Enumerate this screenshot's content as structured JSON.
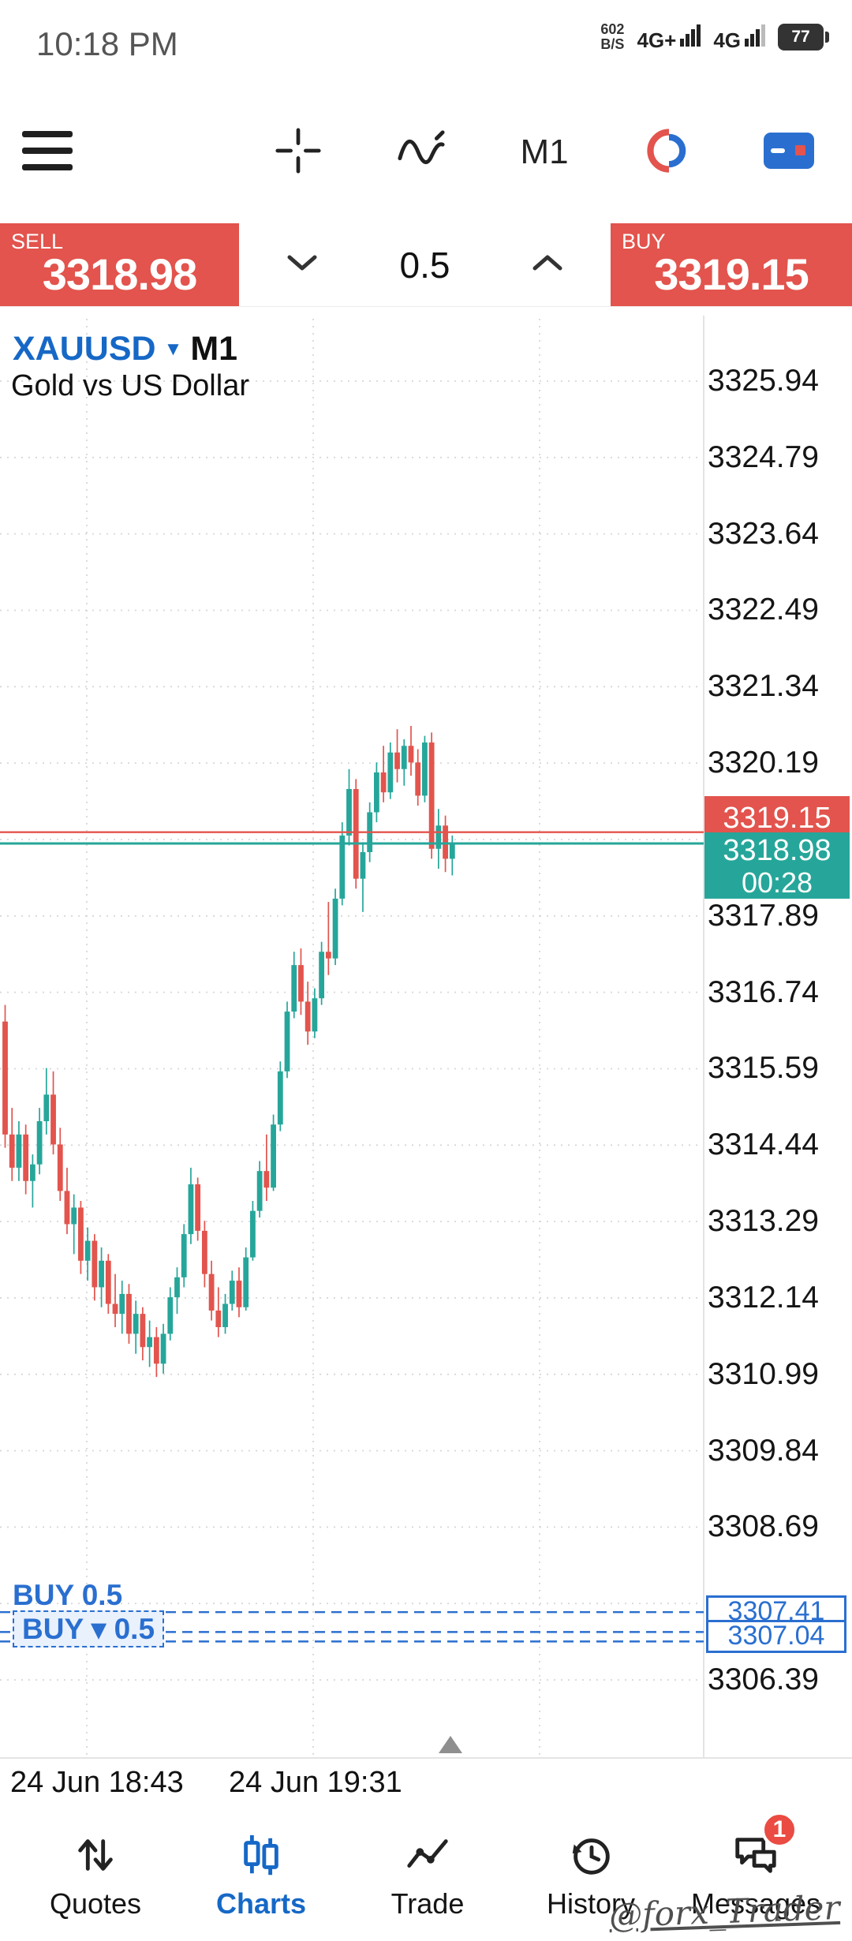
{
  "status_bar": {
    "time": "10:18 PM",
    "data_rate_top": "602",
    "data_rate_bottom": "B/S",
    "network_1": "4G+",
    "network_2": "4G",
    "battery_percent": "77"
  },
  "toolbar": {
    "timeframe_label": "M1"
  },
  "order_panel": {
    "sell_label": "SELL",
    "sell_price": "3318.98",
    "volume": "0.5",
    "buy_label": "BUY",
    "buy_price": "3319.15"
  },
  "chart": {
    "symbol": "XAUUSD",
    "timeframe": "M1",
    "description": "Gold vs US Dollar",
    "ask_price": "3319.15",
    "bid_price": "3318.98",
    "countdown": "00:28",
    "order_prices": {
      "first": "3307.41",
      "second": "3307.04"
    },
    "order_labels": {
      "first": "BUY 0.5",
      "second": "BUY ▾ 0.5"
    },
    "time_labels": {
      "first": "24 Jun 18:43",
      "second": "24 Jun 19:31"
    }
  },
  "chart_data": {
    "type": "candlestick",
    "symbol": "XAUUSD",
    "timeframe": "M1",
    "description": "Gold vs US Dollar",
    "bid": 3318.98,
    "ask": 3319.15,
    "countdown": "00:28",
    "y_axis_ticks": [
      3325.94,
      3324.79,
      3323.64,
      3322.49,
      3321.34,
      3320.19,
      3317.89,
      3316.74,
      3315.59,
      3314.44,
      3313.29,
      3312.14,
      3310.99,
      3309.84,
      3308.69,
      3306.39
    ],
    "x_axis_labels": [
      "24 Jun 18:43",
      "24 Jun 19:31"
    ],
    "orders": [
      {
        "label": "BUY 0.5",
        "price": 3307.41
      },
      {
        "label": "BUY 0.5",
        "price": 3307.04
      }
    ],
    "up_color": "#26a69a",
    "down_color": "#e2544d",
    "order_color": "#2a6fd0",
    "candles": [
      [
        3316.3,
        3316.55,
        3314.4,
        3314.6
      ],
      [
        3314.6,
        3315.0,
        3313.9,
        3314.1
      ],
      [
        3314.1,
        3314.8,
        3313.9,
        3314.6
      ],
      [
        3314.6,
        3314.75,
        3313.7,
        3313.9
      ],
      [
        3313.9,
        3314.3,
        3313.5,
        3314.15
      ],
      [
        3314.15,
        3315.0,
        3314.0,
        3314.8
      ],
      [
        3314.8,
        3315.6,
        3314.6,
        3315.2
      ],
      [
        3315.2,
        3315.55,
        3314.3,
        3314.45
      ],
      [
        3314.45,
        3314.7,
        3313.6,
        3313.75
      ],
      [
        3313.75,
        3314.1,
        3313.1,
        3313.25
      ],
      [
        3313.25,
        3313.7,
        3312.8,
        3313.5
      ],
      [
        3313.5,
        3313.6,
        3312.5,
        3312.7
      ],
      [
        3312.7,
        3313.2,
        3312.4,
        3313.0
      ],
      [
        3313.0,
        3313.1,
        3312.1,
        3312.3
      ],
      [
        3312.3,
        3312.9,
        3312.0,
        3312.7
      ],
      [
        3312.7,
        3312.8,
        3311.9,
        3312.05
      ],
      [
        3312.05,
        3312.5,
        3311.7,
        3311.9
      ],
      [
        3311.9,
        3312.4,
        3311.6,
        3312.2
      ],
      [
        3312.2,
        3312.35,
        3311.45,
        3311.6
      ],
      [
        3311.6,
        3312.1,
        3311.3,
        3311.9
      ],
      [
        3311.9,
        3312.0,
        3311.2,
        3311.4
      ],
      [
        3311.4,
        3311.8,
        3311.1,
        3311.55
      ],
      [
        3311.55,
        3311.7,
        3310.95,
        3311.15
      ],
      [
        3311.15,
        3311.75,
        3311.0,
        3311.6
      ],
      [
        3311.6,
        3312.3,
        3311.5,
        3312.15
      ],
      [
        3312.15,
        3312.6,
        3311.9,
        3312.45
      ],
      [
        3312.45,
        3313.25,
        3312.3,
        3313.1
      ],
      [
        3313.1,
        3314.1,
        3312.95,
        3313.85
      ],
      [
        3313.85,
        3313.95,
        3313.0,
        3313.15
      ],
      [
        3313.15,
        3313.3,
        3312.3,
        3312.5
      ],
      [
        3312.5,
        3312.7,
        3311.8,
        3311.95
      ],
      [
        3311.95,
        3312.3,
        3311.55,
        3311.7
      ],
      [
        3311.7,
        3312.2,
        3311.6,
        3312.05
      ],
      [
        3312.05,
        3312.55,
        3311.95,
        3312.4
      ],
      [
        3312.4,
        3312.6,
        3311.85,
        3312.0
      ],
      [
        3312.0,
        3312.9,
        3311.95,
        3312.75
      ],
      [
        3312.75,
        3313.6,
        3312.7,
        3313.45
      ],
      [
        3313.45,
        3314.2,
        3313.35,
        3314.05
      ],
      [
        3314.05,
        3314.6,
        3313.6,
        3313.8
      ],
      [
        3313.8,
        3314.9,
        3313.75,
        3314.75
      ],
      [
        3314.75,
        3315.7,
        3314.65,
        3315.55
      ],
      [
        3315.55,
        3316.6,
        3315.45,
        3316.45
      ],
      [
        3316.45,
        3317.35,
        3316.35,
        3317.15
      ],
      [
        3317.15,
        3317.4,
        3316.4,
        3316.6
      ],
      [
        3316.6,
        3316.9,
        3315.95,
        3316.15
      ],
      [
        3316.15,
        3316.8,
        3316.05,
        3316.65
      ],
      [
        3316.65,
        3317.5,
        3316.55,
        3317.35
      ],
      [
        3317.35,
        3318.1,
        3317.0,
        3317.25
      ],
      [
        3317.25,
        3318.3,
        3317.15,
        3318.15
      ],
      [
        3318.15,
        3319.3,
        3318.05,
        3319.1
      ],
      [
        3319.1,
        3320.1,
        3318.95,
        3319.8
      ],
      [
        3319.8,
        3319.95,
        3318.3,
        3318.45
      ],
      [
        3318.45,
        3319.0,
        3317.95,
        3318.85
      ],
      [
        3318.85,
        3319.6,
        3318.7,
        3319.45
      ],
      [
        3319.45,
        3320.2,
        3319.3,
        3320.05
      ],
      [
        3320.05,
        3320.45,
        3319.6,
        3319.75
      ],
      [
        3319.75,
        3320.5,
        3319.65,
        3320.35
      ],
      [
        3320.35,
        3320.7,
        3319.9,
        3320.1
      ],
      [
        3320.1,
        3320.55,
        3319.85,
        3320.45
      ],
      [
        3320.45,
        3320.75,
        3320.0,
        3320.2
      ],
      [
        3320.2,
        3320.4,
        3319.55,
        3319.7
      ],
      [
        3319.7,
        3320.6,
        3319.6,
        3320.5
      ],
      [
        3320.5,
        3320.65,
        3318.75,
        3318.9
      ],
      [
        3318.9,
        3319.5,
        3318.6,
        3319.25
      ],
      [
        3319.25,
        3319.4,
        3318.55,
        3318.75
      ],
      [
        3318.75,
        3319.1,
        3318.5,
        3318.98
      ]
    ]
  },
  "bottom_nav": {
    "items": [
      {
        "label": "Quotes",
        "active": false
      },
      {
        "label": "Charts",
        "active": true
      },
      {
        "label": "Trade",
        "active": false
      },
      {
        "label": "History",
        "active": false
      },
      {
        "label": "Messages",
        "active": false,
        "badge": "1"
      }
    ]
  },
  "watermark": "@forx_Trader"
}
